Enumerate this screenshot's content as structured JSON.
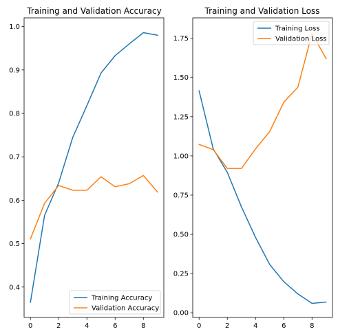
{
  "figure": {
    "background": "#ffffff"
  },
  "chart_data": [
    {
      "type": "line",
      "title": "Training and Validation Accuracy",
      "xlabel": "",
      "ylabel": "",
      "xlim": [
        -0.45,
        9.45
      ],
      "ylim": [
        0.33,
        1.02
      ],
      "x_ticks": [
        0,
        2,
        4,
        6,
        8
      ],
      "x_tick_labels": [
        "0",
        "2",
        "4",
        "6",
        "8"
      ],
      "y_ticks": [
        0.4,
        0.5,
        0.6,
        0.7,
        0.8,
        0.9,
        1.0
      ],
      "y_tick_labels": [
        "0.4",
        "0.5",
        "0.6",
        "0.7",
        "0.8",
        "0.9",
        "1.0"
      ],
      "grid": false,
      "legend_position": "lower right",
      "series": [
        {
          "name": "Training Accuracy",
          "color": "#1f77b4",
          "x": [
            0,
            1,
            2,
            3,
            4,
            5,
            6,
            7,
            8,
            9
          ],
          "y": [
            0.365,
            0.565,
            0.64,
            0.745,
            0.818,
            0.893,
            0.933,
            0.96,
            0.986,
            0.98
          ]
        },
        {
          "name": "Validation Accuracy",
          "color": "#ff7f0e",
          "x": [
            0,
            1,
            2,
            3,
            4,
            5,
            6,
            7,
            8,
            9
          ],
          "y": [
            0.511,
            0.593,
            0.634,
            0.623,
            0.623,
            0.654,
            0.631,
            0.638,
            0.657,
            0.619
          ]
        }
      ]
    },
    {
      "type": "line",
      "title": "Training and Validation Loss",
      "xlabel": "",
      "ylabel": "",
      "xlim": [
        -0.45,
        9.45
      ],
      "ylim": [
        -0.03,
        1.88
      ],
      "x_ticks": [
        0,
        2,
        4,
        6,
        8
      ],
      "x_tick_labels": [
        "0",
        "2",
        "4",
        "6",
        "8"
      ],
      "y_ticks": [
        0.0,
        0.25,
        0.5,
        0.75,
        1.0,
        1.25,
        1.5,
        1.75
      ],
      "y_tick_labels": [
        "0.00",
        "0.25",
        "0.50",
        "0.75",
        "1.00",
        "1.25",
        "1.50",
        "1.75"
      ],
      "grid": false,
      "legend_position": "upper right",
      "series": [
        {
          "name": "Training Loss",
          "color": "#1f77b4",
          "x": [
            0,
            1,
            2,
            3,
            4,
            5,
            6,
            7,
            8,
            9
          ],
          "y": [
            1.415,
            1.045,
            0.895,
            0.675,
            0.48,
            0.308,
            0.198,
            0.12,
            0.06,
            0.068
          ]
        },
        {
          "name": "Validation Loss",
          "color": "#ff7f0e",
          "x": [
            0,
            1,
            2,
            3,
            4,
            5,
            6,
            7,
            8,
            9
          ],
          "y": [
            1.073,
            1.04,
            0.92,
            0.92,
            1.045,
            1.155,
            1.342,
            1.438,
            1.78,
            1.62
          ]
        }
      ]
    }
  ]
}
